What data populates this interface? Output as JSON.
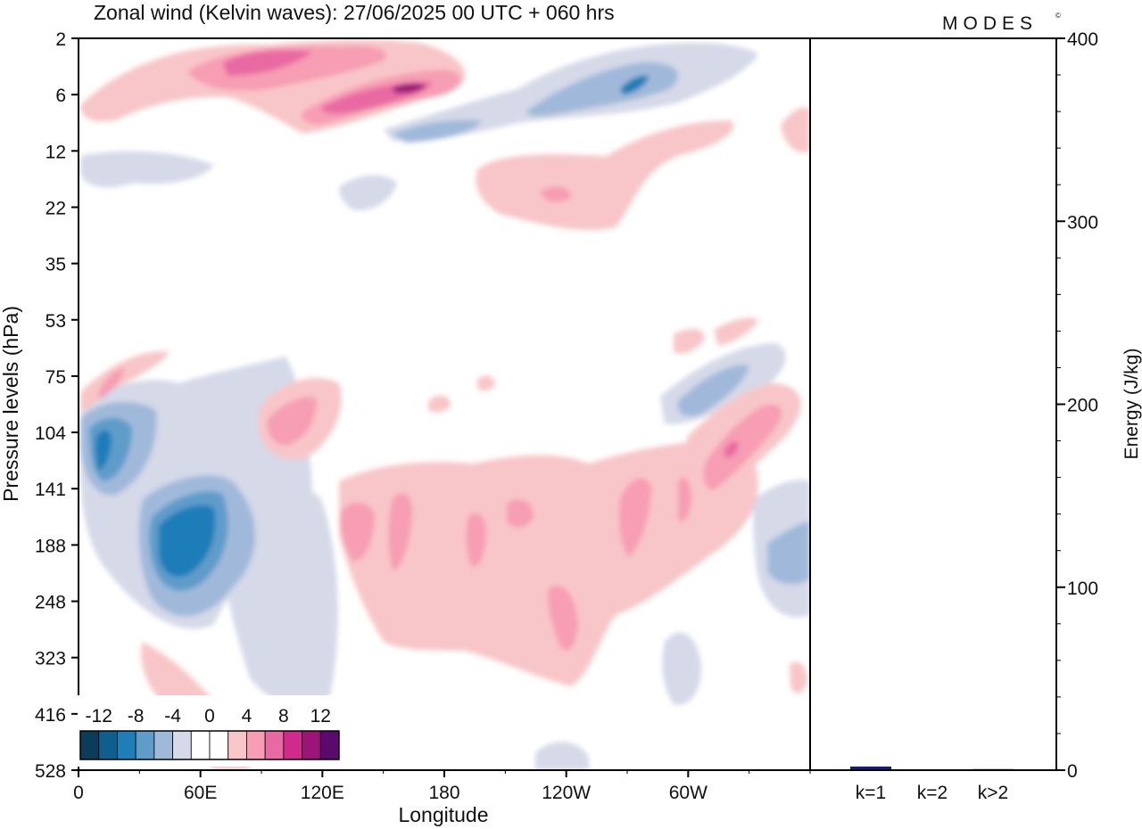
{
  "title": "Zonal wind (Kelvin waves):  27/06/2025  00 UTC  + 060 hrs",
  "brand": "MODES",
  "brand_mark": "©",
  "chart_data": [
    {
      "type": "heatmap",
      "variable": "Zonal wind (Kelvin waves)",
      "xlabel": "Longitude",
      "ylabel": "Pressure levels (hPa)",
      "x_ticks": [
        {
          "lon": 0,
          "label": "0"
        },
        {
          "lon": 60,
          "label": "60E"
        },
        {
          "lon": 120,
          "label": "120E"
        },
        {
          "lon": 180,
          "label": "180"
        },
        {
          "lon": 240,
          "label": "120W"
        },
        {
          "lon": 300,
          "label": "60W"
        }
      ],
      "xlim": [
        0,
        360
      ],
      "y_levels": [
        "2",
        "6",
        "12",
        "22",
        "35",
        "53",
        "75",
        "104",
        "141",
        "188",
        "248",
        "323",
        "416",
        "528"
      ],
      "y_scale": "ordinal-log",
      "colorbar": {
        "tick_labels": [
          "-12",
          "-8",
          "-4",
          "0",
          "4",
          "8",
          "12"
        ],
        "bounds": [
          -12,
          -10,
          -8,
          -6,
          -4,
          -2,
          0,
          2,
          4,
          6,
          8,
          10,
          12
        ],
        "colors": [
          "#0b3d5a",
          "#0f5f8e",
          "#1f7db8",
          "#5f9cca",
          "#a0b9da",
          "#d5d9e8",
          "#ffffff",
          "#ffffff",
          "#f8c6c8",
          "#f79db4",
          "#e969a2",
          "#d12a8c",
          "#9c1478",
          "#5a0a6c"
        ],
        "placement": "bottom-left"
      },
      "features": [
        {
          "sign": "positive",
          "lon_range": [
            70,
            200
          ],
          "levels": [
            "2",
            "12"
          ],
          "peak": 12
        },
        {
          "sign": "negative",
          "lon_range": [
            220,
            290
          ],
          "levels": [
            "2",
            "12"
          ],
          "peak": -10
        },
        {
          "sign": "positive",
          "lon_range": [
            195,
            280
          ],
          "levels": [
            "12",
            "22"
          ],
          "peak": 6
        },
        {
          "sign": "negative",
          "lon_range": [
            5,
            25
          ],
          "levels": [
            "104",
            "141"
          ],
          "peak": -10
        },
        {
          "sign": "negative",
          "lon_range": [
            30,
            90
          ],
          "levels": [
            "141",
            "248"
          ],
          "peak": -10
        },
        {
          "sign": "positive",
          "lon_range": [
            90,
            130
          ],
          "levels": [
            "75",
            "141"
          ],
          "peak": 8
        },
        {
          "sign": "positive",
          "lon_range": [
            125,
            305
          ],
          "levels": [
            "141",
            "323"
          ],
          "peak": 8
        },
        {
          "sign": "positive",
          "lon_range": [
            270,
            350
          ],
          "levels": [
            "75",
            "188"
          ],
          "peak": 10
        },
        {
          "sign": "negative",
          "lon_range": [
            280,
            330
          ],
          "levels": [
            "53",
            "104"
          ],
          "peak": -6
        },
        {
          "sign": "negative",
          "lon_range": [
            335,
            360
          ],
          "levels": [
            "141",
            "248"
          ],
          "peak": -6
        }
      ]
    },
    {
      "type": "bar",
      "ylabel": "Energy (J/kg)",
      "categories": [
        "k=1",
        "k=2",
        "k>2"
      ],
      "values": [
        2.0,
        0.3,
        0.6
      ],
      "ylim": [
        0,
        400
      ],
      "y_ticks": [
        "0",
        "100",
        "200",
        "300",
        "400"
      ],
      "bar_color": "#1a1a7a"
    }
  ]
}
